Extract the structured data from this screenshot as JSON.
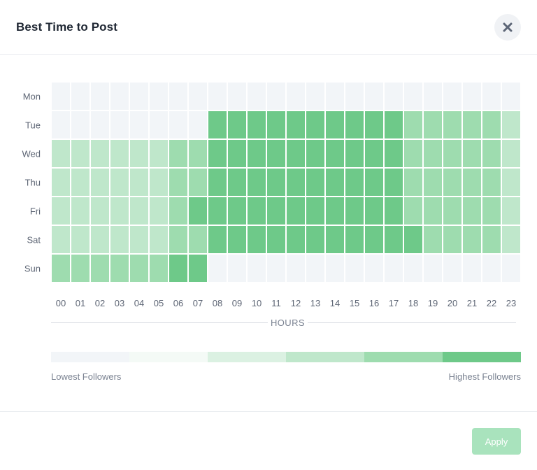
{
  "modal": {
    "title": "Best Time to Post",
    "close_icon": "close-icon",
    "apply_label": "Apply"
  },
  "chart_data": {
    "type": "heatmap",
    "title": "Best Time to Post",
    "xlabel": "HOURS",
    "ylabel": "",
    "rows": [
      "Mon",
      "Tue",
      "Wed",
      "Thu",
      "Fri",
      "Sat",
      "Sun"
    ],
    "columns": [
      "00",
      "01",
      "02",
      "03",
      "04",
      "05",
      "06",
      "07",
      "08",
      "09",
      "10",
      "11",
      "12",
      "13",
      "14",
      "15",
      "16",
      "17",
      "18",
      "19",
      "20",
      "21",
      "22",
      "23"
    ],
    "level_range": [
      0,
      5
    ],
    "values": [
      [
        0,
        0,
        0,
        0,
        0,
        0,
        0,
        0,
        0,
        0,
        0,
        0,
        0,
        0,
        0,
        0,
        0,
        0,
        0,
        0,
        0,
        0,
        0,
        0
      ],
      [
        0,
        0,
        0,
        0,
        0,
        0,
        0,
        0,
        5,
        5,
        5,
        5,
        5,
        5,
        5,
        5,
        5,
        5,
        4,
        4,
        4,
        4,
        4,
        3
      ],
      [
        3,
        3,
        3,
        3,
        3,
        3,
        4,
        4,
        5,
        5,
        5,
        5,
        5,
        5,
        5,
        5,
        5,
        5,
        4,
        4,
        4,
        4,
        4,
        3
      ],
      [
        3,
        3,
        3,
        3,
        3,
        3,
        4,
        4,
        5,
        5,
        5,
        5,
        5,
        5,
        5,
        5,
        5,
        5,
        4,
        4,
        4,
        4,
        4,
        3
      ],
      [
        3,
        3,
        3,
        3,
        3,
        3,
        4,
        5,
        5,
        5,
        5,
        5,
        5,
        5,
        5,
        5,
        5,
        5,
        4,
        4,
        4,
        4,
        4,
        3
      ],
      [
        3,
        3,
        3,
        3,
        3,
        3,
        4,
        4,
        5,
        5,
        5,
        5,
        5,
        5,
        5,
        5,
        5,
        5,
        5,
        4,
        4,
        4,
        4,
        3
      ],
      [
        4,
        4,
        4,
        4,
        4,
        4,
        5,
        5,
        0,
        0,
        0,
        0,
        0,
        0,
        0,
        0,
        0,
        0,
        0,
        0,
        0,
        0,
        0,
        0
      ]
    ],
    "scale_colors": [
      "#f2f5f8",
      "#f4faf6",
      "#dbf1e2",
      "#bfe7cb",
      "#9edcaf",
      "#6ec989"
    ],
    "legend": {
      "low_label": "Lowest Followers",
      "high_label": "Highest Followers"
    }
  }
}
